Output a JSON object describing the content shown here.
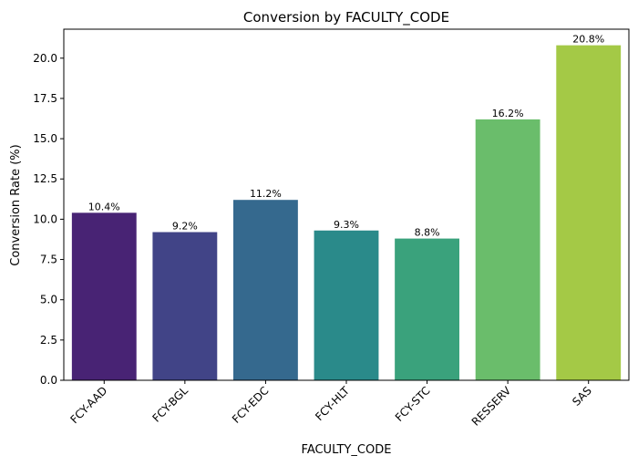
{
  "chart_data": {
    "type": "bar",
    "title": "Conversion by FACULTY_CODE",
    "xlabel": "FACULTY_CODE",
    "ylabel": "Conversion Rate (%)",
    "categories": [
      "FCY-AAD",
      "FCY-BGL",
      "FCY-EDC",
      "FCY-HLT",
      "FCY-STC",
      "RESSERV",
      "SAS"
    ],
    "values": [
      10.4,
      9.2,
      11.2,
      9.3,
      8.8,
      16.2,
      20.8
    ],
    "data_labels": [
      "10.4%",
      "9.2%",
      "11.2%",
      "9.3%",
      "8.8%",
      "16.2%",
      "20.8%"
    ],
    "colors": [
      "#482374",
      "#414487",
      "#35698e",
      "#2a8a8a",
      "#3aa27c",
      "#6abd6b",
      "#a4c946"
    ],
    "ylim": [
      0,
      21.8
    ],
    "yticks": [
      0.0,
      2.5,
      5.0,
      7.5,
      10.0,
      12.5,
      15.0,
      17.5,
      20.0
    ],
    "ytick_labels": [
      "0.0",
      "2.5",
      "5.0",
      "7.5",
      "10.0",
      "12.5",
      "15.0",
      "17.5",
      "20.0"
    ],
    "grid": false,
    "legend": "none"
  }
}
